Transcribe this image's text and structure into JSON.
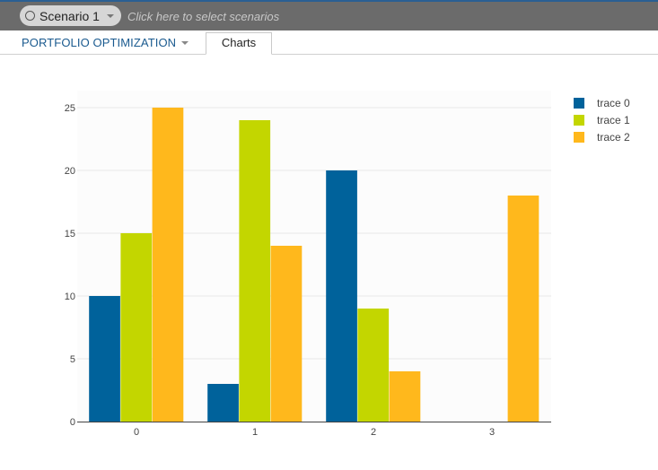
{
  "topbar": {
    "scenario_label": "Scenario 1",
    "select_hint": "Click here to select scenarios",
    "icons": {
      "scenario": "circle-icon",
      "dropdown": "caret-down-icon"
    }
  },
  "tabs": {
    "portfolio_label": "PORTFOLIO OPTIMIZATION",
    "charts_label": "Charts"
  },
  "colors": {
    "trace0": "#00629b",
    "trace1": "#c3d600",
    "trace2": "#ffb81c",
    "topbar": "#6b6b6b",
    "accent": "#1a5a8f"
  },
  "chart_data": {
    "type": "bar",
    "categories": [
      "0",
      "1",
      "2",
      "3"
    ],
    "series": [
      {
        "name": "trace 0",
        "values": [
          10,
          3,
          20,
          0
        ],
        "color": "#00629b"
      },
      {
        "name": "trace 1",
        "values": [
          15,
          24,
          9,
          0
        ],
        "color": "#c3d600"
      },
      {
        "name": "trace 2",
        "values": [
          25,
          14,
          4,
          18
        ],
        "color": "#ffb81c"
      }
    ],
    "ylim": [
      0,
      25
    ],
    "yticks": [
      0,
      5,
      10,
      15,
      20,
      25
    ],
    "grid": true,
    "legend": "top-right"
  }
}
